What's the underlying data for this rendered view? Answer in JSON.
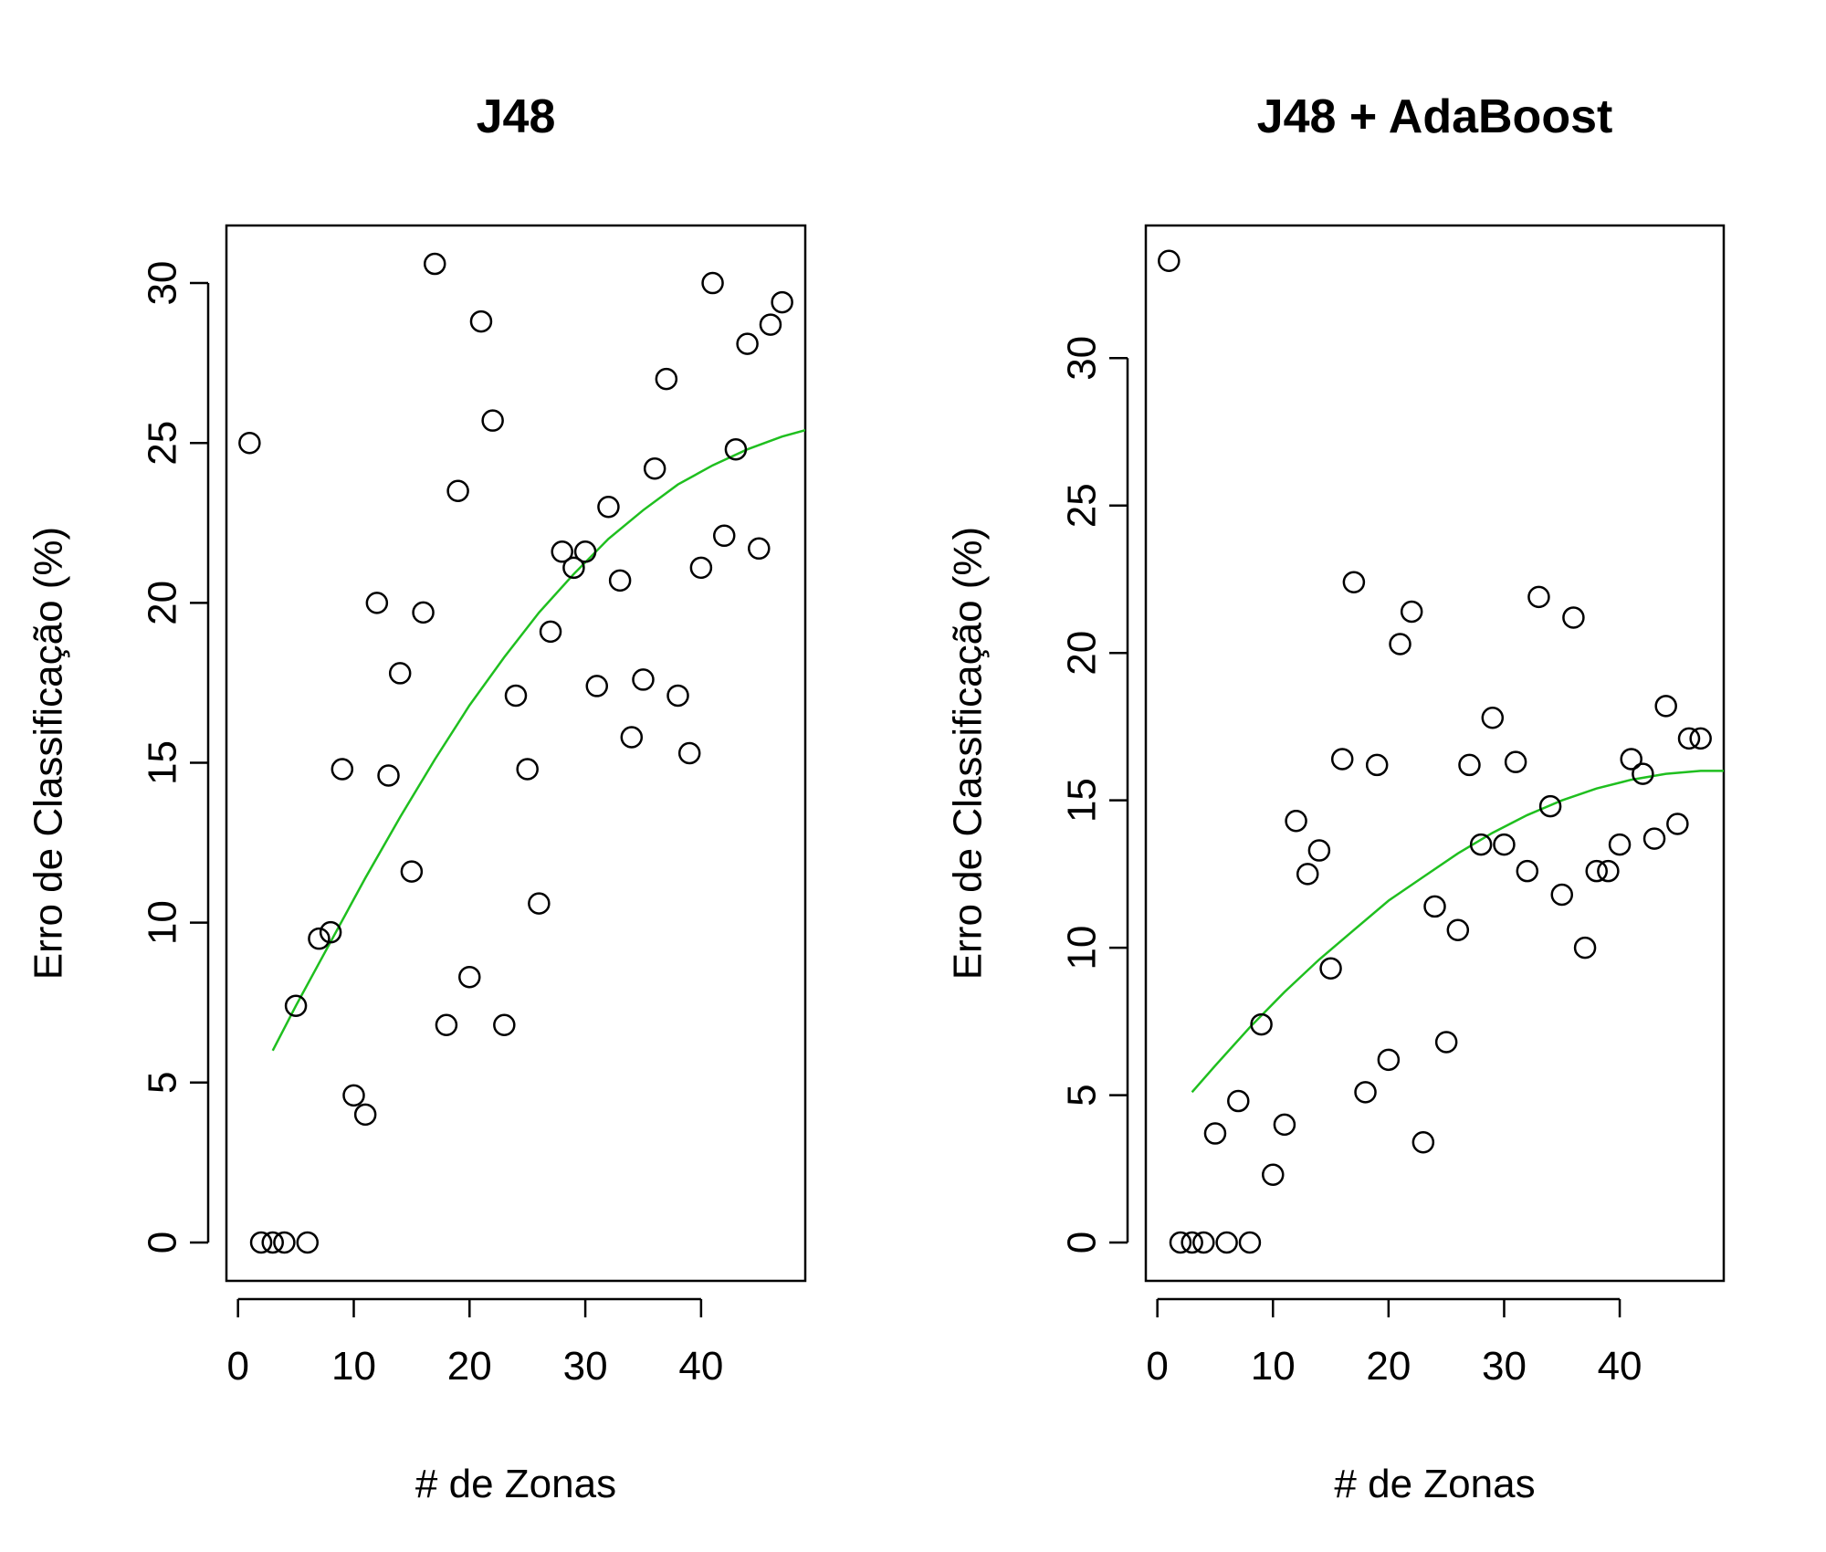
{
  "chart_data": [
    {
      "type": "scatter",
      "title": "J48",
      "xlabel": "# de Zonas",
      "ylabel": "Erro de Classificação (%)",
      "xlim": [
        -1,
        49
      ],
      "ylim": [
        -1.2,
        31.8
      ],
      "xticks": [
        0,
        10,
        20,
        30,
        40
      ],
      "yticks": [
        0,
        5,
        10,
        15,
        20,
        25,
        30
      ],
      "grid": false,
      "points": {
        "x": [
          1,
          2,
          3,
          4,
          5,
          6,
          7,
          8,
          9,
          10,
          11,
          12,
          13,
          14,
          15,
          16,
          17,
          18,
          19,
          20,
          21,
          22,
          23,
          24,
          25,
          26,
          27,
          28,
          29,
          30,
          31,
          32,
          33,
          34,
          35,
          36,
          37,
          38,
          39,
          40,
          41,
          42,
          43,
          44,
          45,
          46,
          47
        ],
        "y": [
          25.0,
          0,
          0,
          0,
          7.4,
          0,
          9.5,
          9.7,
          14.8,
          4.6,
          4.0,
          20.0,
          14.6,
          17.8,
          11.6,
          19.7,
          30.6,
          6.8,
          23.5,
          8.3,
          28.8,
          25.7,
          6.8,
          17.1,
          14.8,
          10.6,
          19.1,
          21.6,
          21.1,
          21.6,
          17.4,
          23.0,
          20.7,
          15.8,
          17.6,
          24.2,
          27.0,
          17.1,
          15.3,
          21.1,
          30.0,
          22.1,
          24.8,
          28.1,
          21.7,
          28.7,
          29.4
        ]
      },
      "trend": {
        "color": "#1fbf1f",
        "x": [
          3,
          5,
          8,
          11,
          14,
          17,
          20,
          23,
          26,
          29,
          32,
          35,
          38,
          41,
          44,
          47,
          49
        ],
        "y": [
          6.0,
          7.4,
          9.4,
          11.4,
          13.3,
          15.1,
          16.8,
          18.3,
          19.7,
          20.9,
          22.0,
          22.9,
          23.7,
          24.3,
          24.8,
          25.2,
          25.4
        ]
      }
    },
    {
      "type": "scatter",
      "title": "J48 + AdaBoost",
      "xlabel": "# de Zonas",
      "ylabel": "Erro de Classificação (%)",
      "xlim": [
        -1,
        49
      ],
      "ylim": [
        -1.3,
        34.5
      ],
      "xticks": [
        0,
        10,
        20,
        30,
        40
      ],
      "yticks": [
        0,
        5,
        10,
        15,
        20,
        25,
        30
      ],
      "grid": false,
      "points": {
        "x": [
          1,
          2,
          3,
          4,
          5,
          6,
          7,
          8,
          9,
          10,
          11,
          12,
          13,
          14,
          15,
          16,
          17,
          18,
          19,
          20,
          21,
          22,
          23,
          24,
          25,
          26,
          27,
          28,
          29,
          30,
          31,
          32,
          33,
          34,
          35,
          36,
          37,
          38,
          39,
          40,
          41,
          42,
          43,
          44,
          45,
          46,
          47
        ],
        "y": [
          33.3,
          0,
          0,
          0,
          3.7,
          0,
          4.8,
          0,
          7.4,
          2.3,
          4.0,
          14.3,
          12.5,
          13.3,
          9.3,
          16.4,
          22.4,
          5.1,
          16.2,
          6.2,
          20.3,
          21.4,
          3.4,
          11.4,
          6.8,
          10.6,
          16.2,
          13.5,
          17.8,
          13.5,
          16.3,
          12.6,
          21.9,
          14.8,
          11.8,
          21.2,
          10.0,
          12.6,
          12.6,
          13.5,
          16.4,
          15.9,
          13.7,
          18.2,
          14.2,
          17.1,
          17.1
        ]
      },
      "trend": {
        "color": "#1fbf1f",
        "x": [
          3,
          5,
          8,
          11,
          14,
          17,
          20,
          23,
          26,
          29,
          32,
          35,
          38,
          41,
          44,
          47,
          49
        ],
        "y": [
          5.1,
          6.0,
          7.3,
          8.5,
          9.6,
          10.6,
          11.6,
          12.4,
          13.2,
          13.9,
          14.5,
          15.0,
          15.4,
          15.7,
          15.9,
          16.0,
          16.0
        ]
      }
    }
  ]
}
